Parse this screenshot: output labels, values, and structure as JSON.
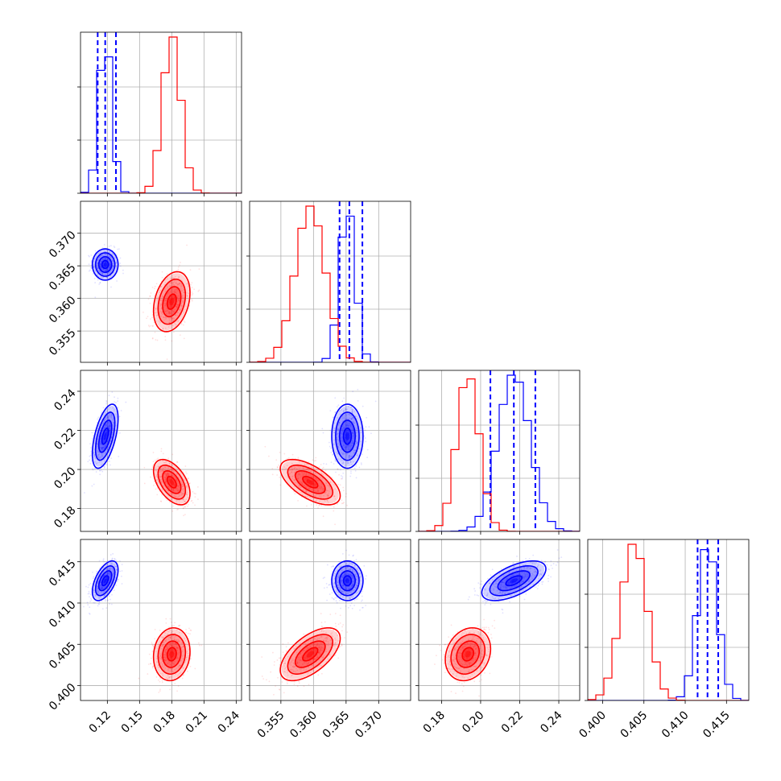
{
  "chart_data": {
    "type": "corner",
    "grid": true,
    "colors": {
      "series_a": "#0000ff",
      "series_b": "#ff0000",
      "grid": "#b0b0b0"
    },
    "parameters": [
      {
        "range": [
          0.095,
          0.245
        ],
        "ticks": [
          0.12,
          0.15,
          0.18,
          0.21,
          0.24
        ],
        "tick_labels": [
          "0.12",
          "0.15",
          "0.18",
          "0.21",
          "0.24"
        ]
      },
      {
        "range": [
          0.3502,
          0.3749
        ],
        "ticks": [
          0.355,
          0.36,
          0.365,
          0.37
        ],
        "tick_labels": [
          "0.355",
          "0.360",
          "0.365",
          "0.370"
        ]
      },
      {
        "range": [
          0.1683,
          0.2507
        ],
        "ticks": [
          0.18,
          0.2,
          0.22,
          0.24
        ],
        "tick_labels": [
          "0.18",
          "0.20",
          "0.22",
          "0.24"
        ]
      },
      {
        "range": [
          0.3982,
          0.4177
        ],
        "ticks": [
          0.4,
          0.405,
          0.41,
          0.415
        ],
        "tick_labels": [
          "0.400",
          "0.405",
          "0.410",
          "0.415"
        ]
      }
    ],
    "series": [
      {
        "color": "#0000ff",
        "mean": [
          0.118,
          0.3652,
          0.217,
          0.4127
        ],
        "sd": [
          0.006,
          0.0012,
          0.0082,
          0.0012
        ],
        "correlations": {
          "0-1": 0.0,
          "0-2": 0.55,
          "0-3": 0.55,
          "1-2": 0.0,
          "1-3": 0.0,
          "2-3": 0.6
        },
        "quantiles_shown": [
          [
            0.111,
            0.118,
            0.128
          ],
          [
            0.364,
            0.3655,
            0.3675
          ],
          [
            0.205,
            0.217,
            0.228
          ],
          [
            0.4115,
            0.4127,
            0.414
          ]
        ]
      },
      {
        "color": "#ff0000",
        "mean": [
          0.18,
          0.3595,
          0.1935,
          0.4038
        ],
        "sd": [
          0.0085,
          0.0023,
          0.0058,
          0.0016
        ],
        "correlations": {
          "0-1": 0.3,
          "0-2": -0.5,
          "0-3": 0.1,
          "1-2": -0.6,
          "1-3": 0.6,
          "2-3": 0.2
        },
        "quantiles_shown": []
      }
    ]
  }
}
